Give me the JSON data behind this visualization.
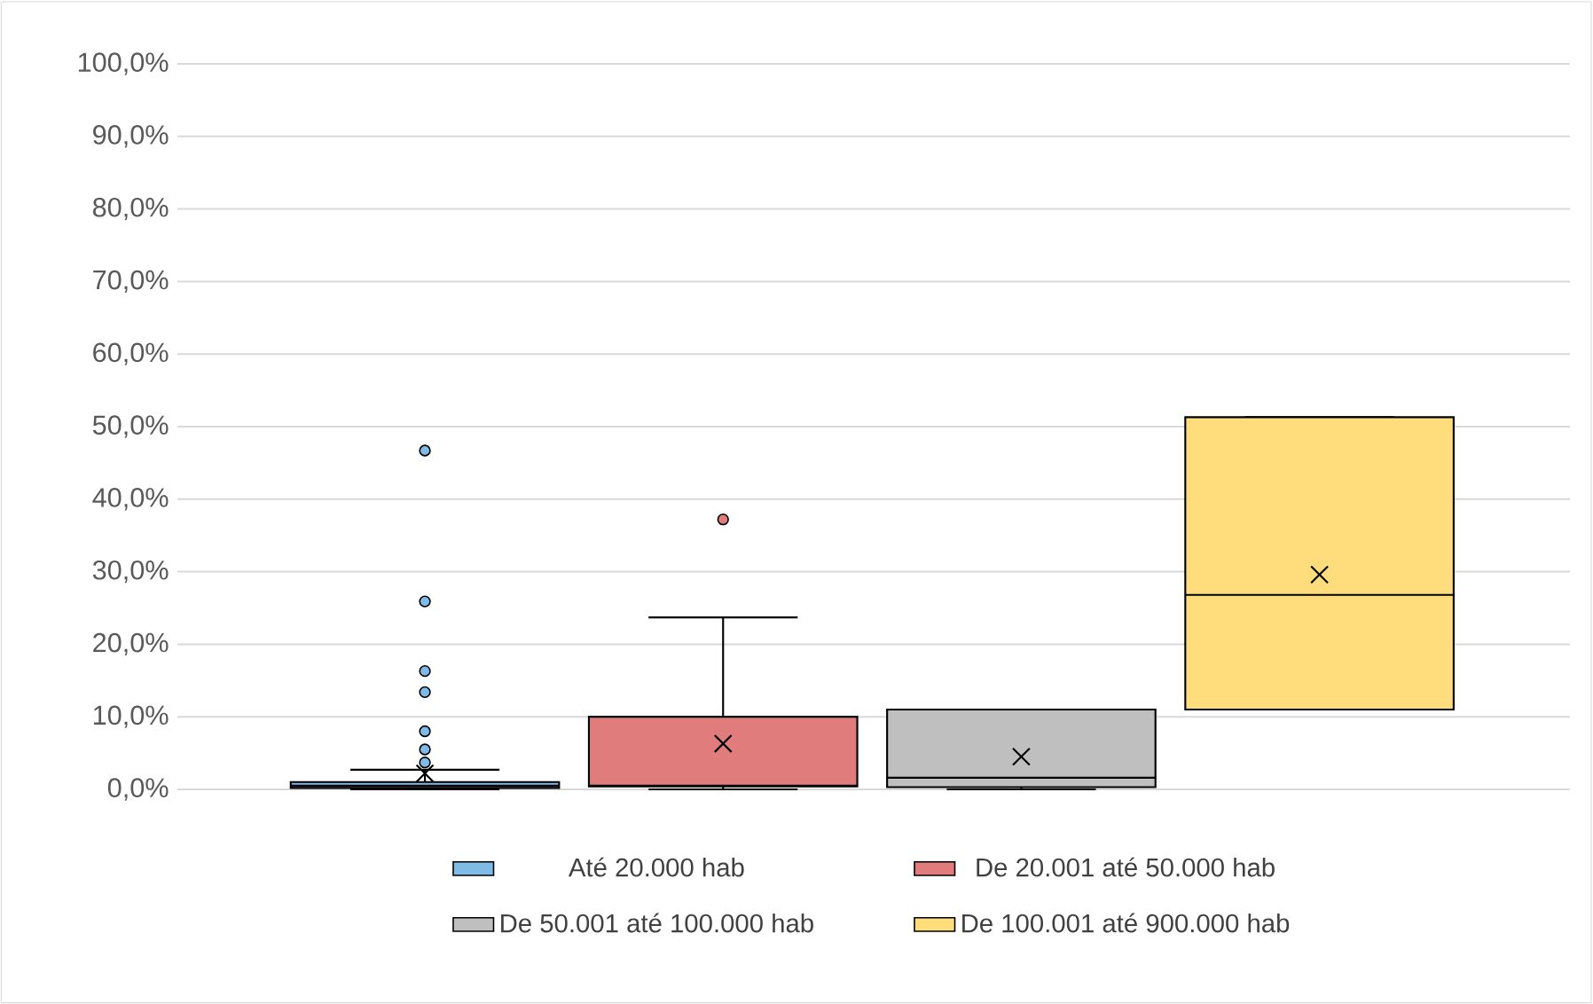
{
  "chart_data": {
    "type": "box",
    "categories": [
      null
    ],
    "series": [
      {
        "name": "Até 20.000 hab",
        "color": "#7fbbe6",
        "boxes": [
          {
            "low": 0,
            "q1": 0.2,
            "median": 0.5,
            "q3": 1.0,
            "high": 2.7,
            "mean": 2.2,
            "outliers": [
              46.7,
              25.9,
              16.3,
              13.4,
              8.0,
              5.5,
              3.7
            ]
          }
        ]
      },
      {
        "name": "De 20.001 até 50.000 hab",
        "color": "#e07c7c",
        "boxes": [
          {
            "low": 0,
            "q1": 0.4,
            "median": 0.5,
            "q3": 10.0,
            "high": 23.7,
            "mean": 6.3,
            "outliers": [
              37.2
            ]
          }
        ]
      },
      {
        "name": "De 50.001 até 100.000 hab",
        "color": "#bfbfbf",
        "boxes": [
          {
            "low": 0,
            "q1": 0.3,
            "median": 1.6,
            "q3": 11.0,
            "high": 11.0,
            "mean": 4.5
          }
        ]
      },
      {
        "name": "De 100.001 até 900.000 hab",
        "color": "#ffdc7c",
        "boxes": [
          {
            "low": 11.0,
            "q1": 11.0,
            "median": 26.8,
            "q3": 51.3,
            "high": 51.3,
            "mean": 29.6
          }
        ]
      }
    ],
    "ylim": [
      0,
      100
    ],
    "yticks": [
      {
        "value": 0,
        "label": "0,0%"
      },
      {
        "value": 10,
        "label": "10,0%"
      },
      {
        "value": 20,
        "label": "20,0%"
      },
      {
        "value": 30,
        "label": "30,0%"
      },
      {
        "value": 40,
        "label": "40,0%"
      },
      {
        "value": 50,
        "label": "50,0%"
      },
      {
        "value": 60,
        "label": "60,0%"
      },
      {
        "value": 70,
        "label": "70,0%"
      },
      {
        "value": 80,
        "label": "80,0%"
      },
      {
        "value": 90,
        "label": "90,0%"
      },
      {
        "value": 100,
        "label": "100,0%"
      }
    ],
    "grid": "y",
    "legend": "bottom"
  }
}
